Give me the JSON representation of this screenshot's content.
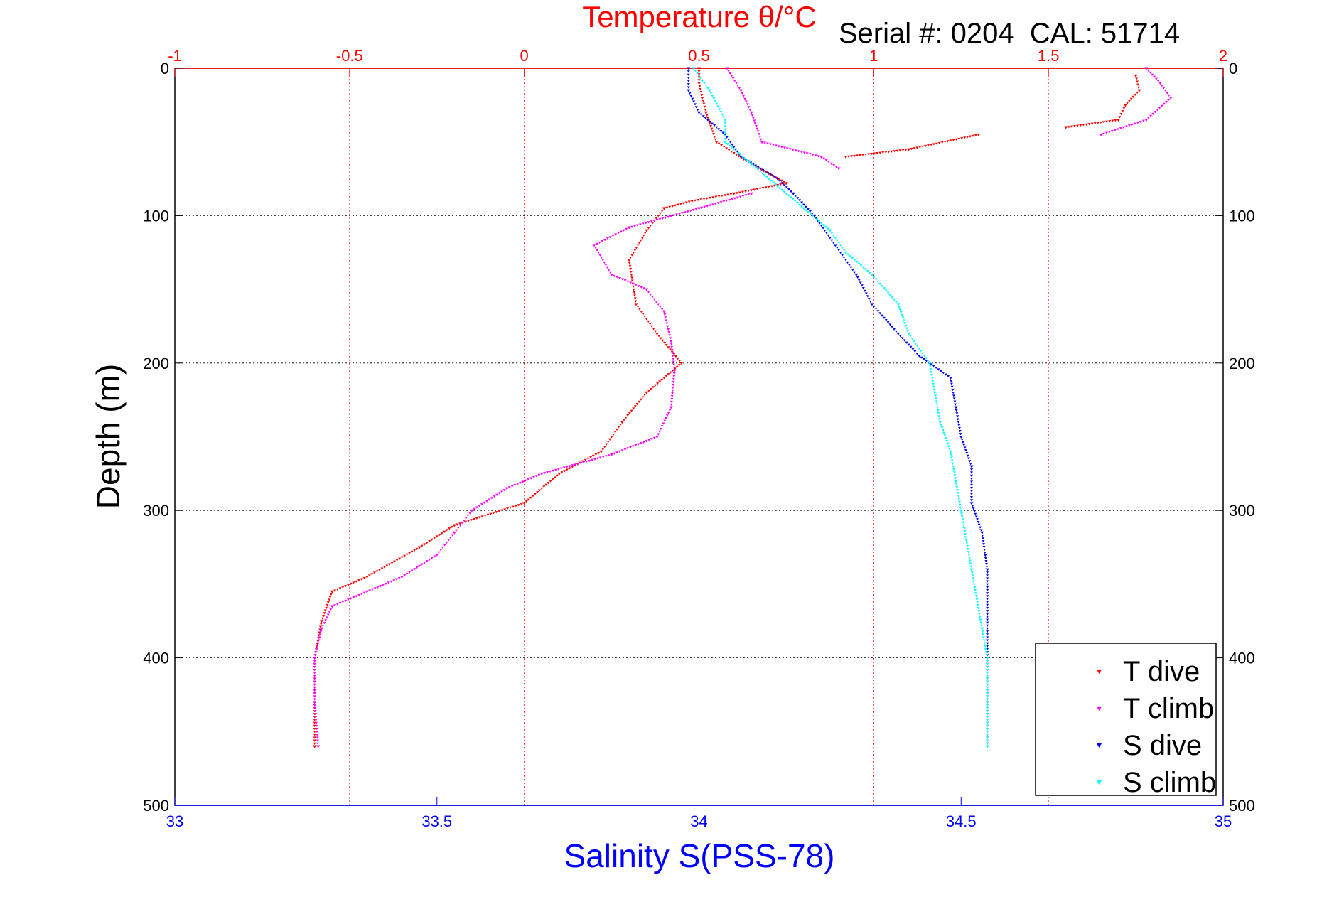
{
  "chart_data": {
    "type": "scatter",
    "title": "Temperature θ/°C",
    "annotation": "Serial #: 0204  CAL: 51714",
    "xlabel": "Salinity S(PSS-78)",
    "ylabel": "Depth (m)",
    "temperature_axis": {
      "position": "top",
      "range": [
        -1,
        2
      ],
      "ticks": [
        "-1",
        "-0.5",
        "0",
        "0.5",
        "1",
        "1.5",
        "2"
      ],
      "color": "#ff0000"
    },
    "salinity_axis": {
      "position": "bottom",
      "range": [
        33,
        35
      ],
      "ticks": [
        "33",
        "33.5",
        "34",
        "34.5",
        "35"
      ],
      "color": "#0000ff"
    },
    "depth_axis": {
      "range": [
        0,
        500
      ],
      "reversed": true,
      "ticks": [
        "0",
        "100",
        "200",
        "300",
        "400",
        "500"
      ]
    },
    "grid": true,
    "legend_position": "bottom-right",
    "series": [
      {
        "name": "T dive",
        "axis": "temperature",
        "color": "#ff0000",
        "points": [
          [
            0.5,
            0
          ],
          [
            0.5,
            10
          ],
          [
            0.52,
            30
          ],
          [
            0.55,
            50
          ],
          [
            0.65,
            65
          ],
          [
            0.75,
            78
          ],
          [
            0.6,
            85
          ],
          [
            0.48,
            90
          ],
          [
            0.4,
            95
          ],
          [
            0.35,
            110
          ],
          [
            0.3,
            130
          ],
          [
            0.32,
            160
          ],
          [
            0.38,
            180
          ],
          [
            0.45,
            200
          ],
          [
            0.35,
            220
          ],
          [
            0.28,
            240
          ],
          [
            0.22,
            260
          ],
          [
            0.1,
            275
          ],
          [
            0.0,
            295
          ],
          [
            -0.2,
            310
          ],
          [
            -0.3,
            325
          ],
          [
            -0.45,
            345
          ],
          [
            -0.55,
            355
          ],
          [
            -0.58,
            375
          ],
          [
            -0.6,
            400
          ],
          [
            -0.6,
            430
          ],
          [
            -0.6,
            460
          ],
          [
            1.75,
            5
          ],
          [
            1.76,
            15
          ],
          [
            1.72,
            25
          ],
          [
            1.7,
            35
          ],
          [
            1.55,
            40
          ],
          [
            1.3,
            45
          ],
          [
            1.1,
            55
          ],
          [
            0.92,
            60
          ]
        ]
      },
      {
        "name": "T climb",
        "axis": "temperature",
        "color": "#ff00ff",
        "points": [
          [
            0.58,
            0
          ],
          [
            0.62,
            15
          ],
          [
            0.65,
            30
          ],
          [
            0.68,
            50
          ],
          [
            0.85,
            60
          ],
          [
            0.9,
            68
          ],
          [
            0.65,
            85
          ],
          [
            0.5,
            95
          ],
          [
            0.3,
            108
          ],
          [
            0.2,
            120
          ],
          [
            0.25,
            140
          ],
          [
            0.35,
            150
          ],
          [
            0.4,
            165
          ],
          [
            0.42,
            185
          ],
          [
            0.43,
            205
          ],
          [
            0.42,
            230
          ],
          [
            0.38,
            250
          ],
          [
            0.25,
            262
          ],
          [
            0.05,
            275
          ],
          [
            -0.05,
            285
          ],
          [
            -0.15,
            300
          ],
          [
            -0.2,
            315
          ],
          [
            -0.25,
            330
          ],
          [
            -0.35,
            345
          ],
          [
            -0.45,
            355
          ],
          [
            -0.55,
            365
          ],
          [
            -0.58,
            380
          ],
          [
            -0.6,
            400
          ],
          [
            -0.6,
            430
          ],
          [
            -0.59,
            460
          ],
          [
            1.65,
            45
          ],
          [
            1.78,
            35
          ],
          [
            1.85,
            20
          ],
          [
            1.82,
            10
          ],
          [
            1.78,
            0
          ]
        ]
      },
      {
        "name": "S dive",
        "axis": "salinity",
        "color": "#0000ff",
        "points": [
          [
            33.98,
            0
          ],
          [
            33.98,
            15
          ],
          [
            34.0,
            30
          ],
          [
            34.05,
            45
          ],
          [
            34.08,
            60
          ],
          [
            34.15,
            75
          ],
          [
            34.18,
            85
          ],
          [
            34.22,
            100
          ],
          [
            34.26,
            120
          ],
          [
            34.3,
            140
          ],
          [
            34.33,
            160
          ],
          [
            34.38,
            180
          ],
          [
            34.42,
            195
          ],
          [
            34.48,
            210
          ],
          [
            34.49,
            230
          ],
          [
            34.5,
            250
          ],
          [
            34.52,
            270
          ],
          [
            34.52,
            295
          ],
          [
            34.54,
            315
          ],
          [
            34.55,
            340
          ],
          [
            34.55,
            370
          ],
          [
            34.55,
            400
          ],
          [
            34.55,
            430
          ],
          [
            34.55,
            460
          ]
        ]
      },
      {
        "name": "S climb",
        "axis": "salinity",
        "color": "#00ffff",
        "points": [
          [
            33.99,
            0
          ],
          [
            34.02,
            15
          ],
          [
            34.05,
            35
          ],
          [
            34.05,
            50
          ],
          [
            34.1,
            65
          ],
          [
            34.15,
            80
          ],
          [
            34.2,
            95
          ],
          [
            34.25,
            110
          ],
          [
            34.28,
            125
          ],
          [
            34.33,
            140
          ],
          [
            34.38,
            160
          ],
          [
            34.4,
            180
          ],
          [
            34.44,
            200
          ],
          [
            34.45,
            220
          ],
          [
            34.46,
            240
          ],
          [
            34.48,
            260
          ],
          [
            34.49,
            280
          ],
          [
            34.5,
            300
          ],
          [
            34.51,
            320
          ],
          [
            34.52,
            340
          ],
          [
            34.53,
            360
          ],
          [
            34.54,
            380
          ],
          [
            34.55,
            400
          ],
          [
            34.55,
            430
          ],
          [
            34.55,
            460
          ]
        ]
      }
    ]
  }
}
